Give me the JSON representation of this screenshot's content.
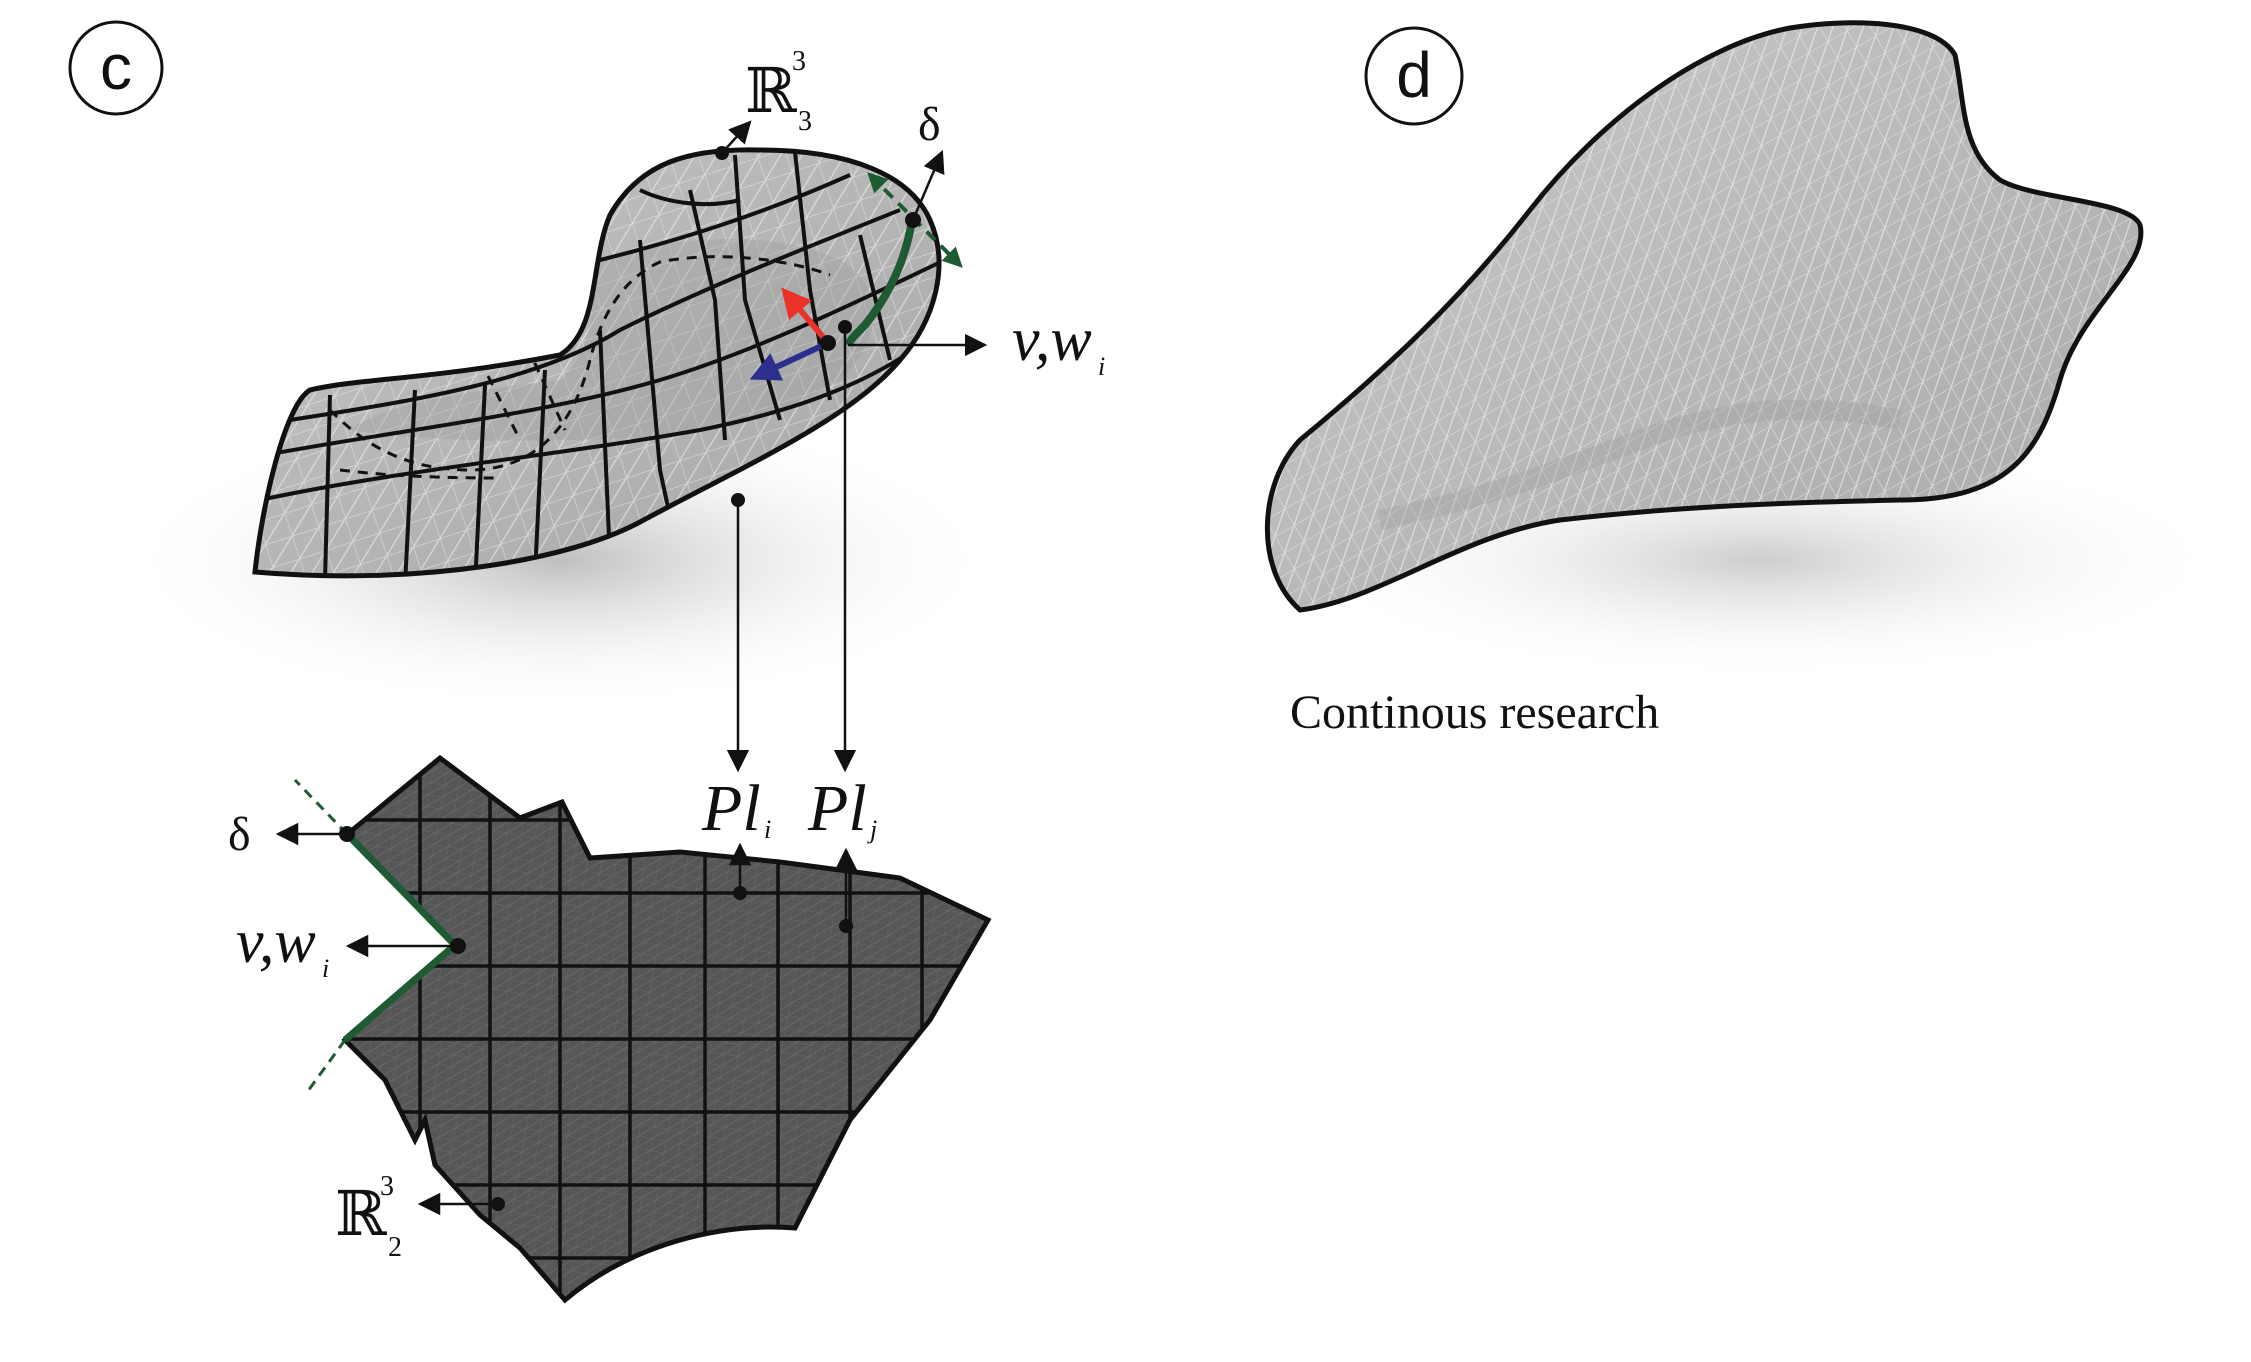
{
  "panels": {
    "c": {
      "letter": "c"
    },
    "d": {
      "letter": "d"
    }
  },
  "labels": {
    "r3_top_base": "ℝ",
    "r3_top_sup": "3",
    "r3_top_sub": "3",
    "delta_top": "δ",
    "vw_top": "v,w",
    "vw_top_sub": "i",
    "pl_i": "Pl",
    "pl_i_sub": "i",
    "pl_j": "Pl",
    "pl_j_sub": "j",
    "delta_bottom": "δ",
    "vw_bottom": "v,w",
    "vw_bottom_sub": "i",
    "r3_bottom_base": "ℝ",
    "r3_bottom_sup": "3",
    "r3_bottom_sub": "2"
  },
  "caption": "Continous research",
  "colors": {
    "surface_light": "#b5b5b5",
    "surface_dark": "#555555",
    "mesh_line": "#e6e6e6",
    "seam_green": "#1e5a32",
    "arrow_red": "#e8322a",
    "arrow_blue": "#2d2f8f"
  }
}
